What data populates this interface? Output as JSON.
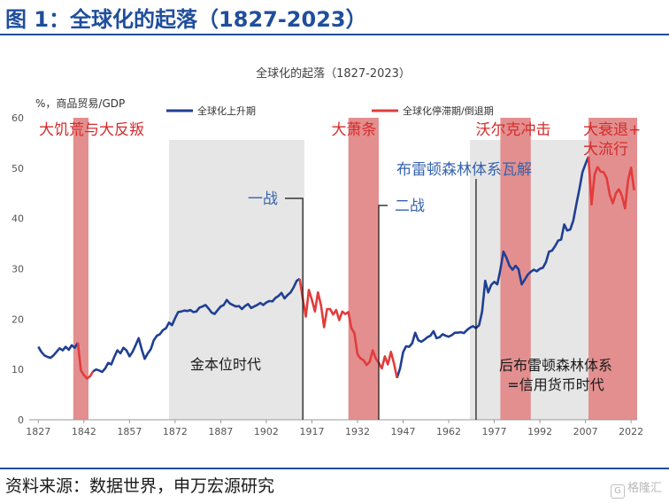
{
  "header": {
    "title": "图 1：全球化的起落（1827-2023）"
  },
  "footer": {
    "source": "资料来源：数据世界，申万宏源研究",
    "watermark": "格隆汇"
  },
  "colors": {
    "rise": "#1f3f93",
    "fall": "#e23c3c",
    "shade_red": "#e38f8f",
    "shade_gray": "#e6e6e6",
    "title_blue": "#1f4e9c",
    "annot_blue": "#3563ad",
    "annot_red": "#d42c2c"
  },
  "chart_data": {
    "type": "line",
    "title": "全球化的起落（1827-2023）",
    "ylabel": "%，商品贸易/GDP",
    "xlim": [
      1824,
      2024
    ],
    "ylim": [
      0,
      60
    ],
    "x_ticks": [
      1827,
      1842,
      1857,
      1872,
      1887,
      1902,
      1917,
      1932,
      1947,
      1962,
      1977,
      1992,
      2007,
      2022
    ],
    "y_ticks": [
      0,
      10,
      20,
      30,
      40,
      50,
      60
    ],
    "grid": false,
    "legend": {
      "position": "top",
      "entries": [
        "全球化上升期",
        "全球化停滞期/倒退期"
      ]
    },
    "series": [
      {
        "name": "全球化上升期",
        "segments": [
          [
            [
              1827,
              14.5
            ],
            [
              1828,
              13.5
            ],
            [
              1829,
              12.8
            ],
            [
              1830,
              12.5
            ],
            [
              1831,
              12.3
            ],
            [
              1832,
              12.8
            ],
            [
              1833,
              13.5
            ],
            [
              1834,
              14.2
            ],
            [
              1835,
              13.8
            ],
            [
              1836,
              14.5
            ],
            [
              1837,
              13.9
            ],
            [
              1838,
              14.8
            ],
            [
              1839,
              14.3
            ],
            [
              1840,
              15.3
            ]
          ],
          [
            [
              1845,
              9.6
            ],
            [
              1846,
              10.0
            ],
            [
              1847,
              9.8
            ],
            [
              1848,
              9.5
            ],
            [
              1849,
              10.2
            ],
            [
              1850,
              11.3
            ],
            [
              1851,
              11.0
            ],
            [
              1852,
              12.5
            ],
            [
              1853,
              13.8
            ],
            [
              1854,
              13.2
            ],
            [
              1855,
              14.3
            ],
            [
              1856,
              13.8
            ],
            [
              1857,
              12.6
            ],
            [
              1858,
              13.5
            ],
            [
              1859,
              14.8
            ],
            [
              1860,
              16.2
            ],
            [
              1861,
              14.0
            ],
            [
              1862,
              12.1
            ],
            [
              1863,
              13.2
            ],
            [
              1864,
              14.0
            ],
            [
              1865,
              15.8
            ],
            [
              1866,
              16.7
            ],
            [
              1867,
              17.0
            ],
            [
              1868,
              17.8
            ],
            [
              1869,
              18.2
            ],
            [
              1870,
              19.3
            ],
            [
              1871,
              18.8
            ],
            [
              1872,
              20.2
            ],
            [
              1873,
              21.4
            ],
            [
              1874,
              21.5
            ],
            [
              1875,
              21.7
            ],
            [
              1876,
              21.6
            ],
            [
              1877,
              21.8
            ],
            [
              1878,
              21.4
            ],
            [
              1879,
              21.5
            ],
            [
              1880,
              22.3
            ],
            [
              1881,
              22.5
            ],
            [
              1882,
              22.8
            ],
            [
              1883,
              22.1
            ],
            [
              1884,
              21.3
            ],
            [
              1885,
              21.0
            ],
            [
              1886,
              21.8
            ],
            [
              1887,
              22.5
            ],
            [
              1888,
              22.8
            ],
            [
              1889,
              23.8
            ],
            [
              1890,
              23.1
            ],
            [
              1891,
              22.8
            ],
            [
              1892,
              22.5
            ],
            [
              1893,
              22.6
            ],
            [
              1894,
              22.0
            ],
            [
              1895,
              22.6
            ],
            [
              1896,
              23.0
            ],
            [
              1897,
              22.2
            ],
            [
              1898,
              22.5
            ],
            [
              1899,
              22.8
            ],
            [
              1900,
              23.2
            ],
            [
              1901,
              22.8
            ],
            [
              1902,
              23.3
            ],
            [
              1903,
              23.6
            ],
            [
              1904,
              23.5
            ],
            [
              1905,
              24.2
            ],
            [
              1906,
              24.6
            ],
            [
              1907,
              25.2
            ],
            [
              1908,
              24.1
            ],
            [
              1909,
              24.8
            ],
            [
              1910,
              25.3
            ],
            [
              1911,
              26.3
            ],
            [
              1912,
              27.6
            ],
            [
              1913,
              28.0
            ]
          ],
          [
            [
              1945,
              8.3
            ],
            [
              1946,
              10.2
            ],
            [
              1947,
              13.4
            ],
            [
              1948,
              14.6
            ],
            [
              1949,
              14.5
            ],
            [
              1950,
              15.2
            ],
            [
              1951,
              17.3
            ],
            [
              1952,
              15.8
            ],
            [
              1953,
              15.5
            ],
            [
              1954,
              15.9
            ],
            [
              1955,
              16.4
            ],
            [
              1956,
              16.7
            ],
            [
              1957,
              17.6
            ],
            [
              1958,
              16.2
            ],
            [
              1959,
              16.4
            ],
            [
              1960,
              17.0
            ],
            [
              1961,
              16.7
            ],
            [
              1962,
              16.5
            ],
            [
              1963,
              16.8
            ],
            [
              1964,
              17.3
            ],
            [
              1965,
              17.3
            ],
            [
              1966,
              17.4
            ],
            [
              1967,
              17.2
            ],
            [
              1968,
              17.8
            ],
            [
              1969,
              18.3
            ],
            [
              1970,
              18.6
            ],
            [
              1971,
              18.2
            ],
            [
              1972,
              18.8
            ],
            [
              1973,
              21.5
            ],
            [
              1974,
              27.6
            ],
            [
              1975,
              25.3
            ],
            [
              1976,
              26.8
            ],
            [
              1977,
              27.4
            ],
            [
              1978,
              26.9
            ],
            [
              1979,
              29.8
            ],
            [
              1980,
              33.4
            ],
            [
              1981,
              32.2
            ],
            [
              1982,
              30.6
            ],
            [
              1983,
              29.8
            ],
            [
              1984,
              30.6
            ],
            [
              1985,
              29.9
            ],
            [
              1986,
              26.9
            ],
            [
              1987,
              27.8
            ],
            [
              1988,
              28.8
            ],
            [
              1989,
              29.4
            ],
            [
              1990,
              29.8
            ],
            [
              1991,
              29.5
            ],
            [
              1992,
              30.0
            ],
            [
              1993,
              30.2
            ],
            [
              1994,
              31.3
            ],
            [
              1995,
              33.4
            ],
            [
              1996,
              33.6
            ],
            [
              1997,
              34.5
            ],
            [
              1998,
              35.6
            ],
            [
              1999,
              35.8
            ],
            [
              2000,
              38.8
            ],
            [
              2001,
              37.6
            ],
            [
              2002,
              37.8
            ],
            [
              2003,
              39.6
            ],
            [
              2004,
              42.8
            ],
            [
              2005,
              45.8
            ],
            [
              2006,
              49.2
            ],
            [
              2007,
              50.8
            ],
            [
              2008,
              52.3
            ]
          ]
        ]
      },
      {
        "name": "全球化停滞期/倒退期",
        "segments": [
          [
            [
              1840,
              15.3
            ],
            [
              1841,
              9.8
            ],
            [
              1842,
              8.9
            ],
            [
              1843,
              8.2
            ],
            [
              1844,
              8.6
            ],
            [
              1845,
              9.6
            ]
          ],
          [
            [
              1913,
              28.0
            ],
            [
              1914,
              24.0
            ],
            [
              1915,
              20.5
            ],
            [
              1916,
              25.8
            ],
            [
              1917,
              23.8
            ],
            [
              1918,
              21.5
            ],
            [
              1919,
              25.3
            ],
            [
              1920,
              22.7
            ],
            [
              1921,
              18.4
            ],
            [
              1922,
              22.0
            ],
            [
              1923,
              22.0
            ],
            [
              1924,
              20.9
            ],
            [
              1925,
              21.8
            ],
            [
              1926,
              19.8
            ],
            [
              1927,
              21.5
            ],
            [
              1928,
              21.0
            ],
            [
              1929,
              21.4
            ],
            [
              1930,
              18.2
            ],
            [
              1931,
              17.2
            ],
            [
              1932,
              13.0
            ],
            [
              1933,
              12.2
            ],
            [
              1934,
              11.8
            ],
            [
              1935,
              10.9
            ],
            [
              1936,
              11.5
            ],
            [
              1937,
              13.8
            ],
            [
              1938,
              12.2
            ],
            [
              1939,
              11.3
            ],
            [
              1940,
              10.2
            ],
            [
              1941,
              12.6
            ],
            [
              1942,
              11.0
            ],
            [
              1943,
              13.5
            ],
            [
              1944,
              11.2
            ],
            [
              1945,
              8.3
            ]
          ],
          [
            [
              2008,
              52.3
            ],
            [
              2009,
              42.8
            ],
            [
              2010,
              48.7
            ],
            [
              2011,
              50.2
            ],
            [
              2012,
              49.3
            ],
            [
              2013,
              49.2
            ],
            [
              2014,
              48.0
            ],
            [
              2015,
              44.7
            ],
            [
              2016,
              43.0
            ],
            [
              2017,
              45.0
            ],
            [
              2018,
              45.8
            ],
            [
              2019,
              44.5
            ],
            [
              2020,
              42.0
            ],
            [
              2021,
              47.5
            ],
            [
              2022,
              50.1
            ],
            [
              2023,
              45.6
            ]
          ]
        ]
      }
    ],
    "shaded_periods": [
      {
        "from": 1838.5,
        "to": 1843.5,
        "style": "red",
        "label": "大饥荒与大反叛"
      },
      {
        "from": 1870,
        "to": 1914.5,
        "style": "gray",
        "label": "金本位时代"
      },
      {
        "from": 1929,
        "to": 1939,
        "style": "red",
        "label": "大萧条"
      },
      {
        "from": 1969,
        "to": 2024,
        "style": "gray",
        "label": "后布雷顿森林体系\n=信用货币时代"
      },
      {
        "from": 1979,
        "to": 1989,
        "style": "red",
        "label": "沃尔克冲击"
      },
      {
        "from": 2008,
        "to": 2024,
        "style": "red",
        "label": "大衰退+\n大流行"
      }
    ],
    "annotations": [
      {
        "text": "一战",
        "x": 1914,
        "color": "blue",
        "marker": "vline"
      },
      {
        "text": "二战",
        "x": 1939,
        "color": "blue",
        "marker": "vline"
      },
      {
        "text": "布雷顿森林体系瓦解",
        "x": 1971,
        "color": "blue",
        "marker": "vline"
      }
    ]
  }
}
